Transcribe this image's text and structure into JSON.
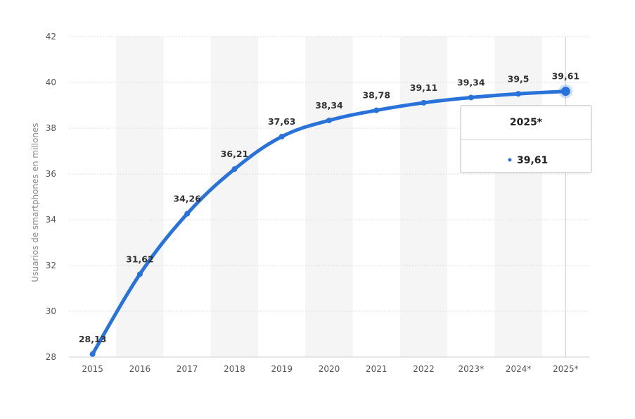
{
  "chart_data": {
    "type": "line",
    "categories": [
      "2015",
      "2016",
      "2017",
      "2018",
      "2019",
      "2020",
      "2021",
      "2022",
      "2023*",
      "2024*",
      "2025*"
    ],
    "values": [
      28.13,
      31.62,
      34.26,
      36.21,
      37.63,
      38.34,
      38.78,
      39.11,
      39.34,
      39.5,
      39.61
    ],
    "data_labels": [
      "28,13",
      "31,62",
      "34,26",
      "36,21",
      "37,63",
      "38,34",
      "38,78",
      "39,11",
      "39,34",
      "39,5",
      "39,61"
    ],
    "ylabel": "Usuarios de smartphones en millones",
    "ylim": [
      28,
      42
    ],
    "yticks": [
      "28",
      "30",
      "32",
      "34",
      "36",
      "38",
      "40",
      "42"
    ],
    "grid": true,
    "line_color": "#2872d9",
    "tooltip": {
      "title": "2025*",
      "value": "39,61"
    }
  }
}
